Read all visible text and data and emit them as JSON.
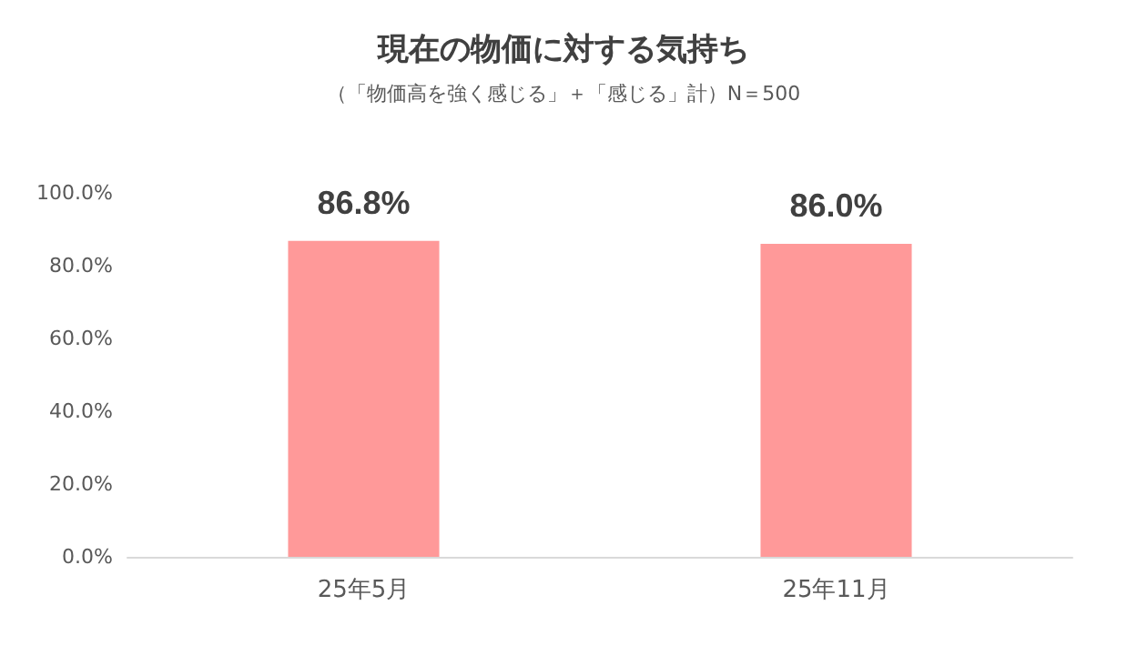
{
  "chart_data": {
    "type": "bar",
    "title": "現在の物価に対する気持ち",
    "subtitle": "（「物価高を強く感じる」＋「感じる」計）N＝500",
    "categories": [
      "25年5月",
      "25年11月"
    ],
    "values": [
      86.8,
      86.0
    ],
    "value_labels": [
      "86.8%",
      "86.0%"
    ],
    "color": "#ff9999",
    "ylim": [
      0,
      100
    ],
    "yticks": [
      {
        "value": 0,
        "label": "0.0%"
      },
      {
        "value": 20,
        "label": "20.0%"
      },
      {
        "value": 40,
        "label": "40.0%"
      },
      {
        "value": 60,
        "label": "60.0%"
      },
      {
        "value": 80,
        "label": "80.0%"
      },
      {
        "value": 100,
        "label": "100.0%"
      }
    ],
    "grid": false
  }
}
